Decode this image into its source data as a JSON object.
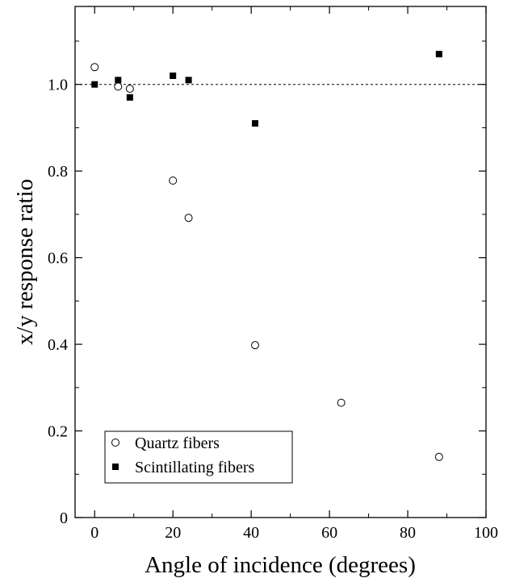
{
  "chart_data": {
    "type": "scatter",
    "xlabel": "Angle of incidence (degrees)",
    "ylabel": "x/y response ratio",
    "xlim": [
      -5,
      100
    ],
    "ylim": [
      0,
      1.18
    ],
    "xticks": [
      0,
      20,
      40,
      60,
      80,
      100
    ],
    "yticks": [
      0,
      0.2,
      0.4,
      0.6,
      0.8,
      1.0
    ],
    "xtick_labels": [
      "0",
      "20",
      "40",
      "60",
      "80",
      "100"
    ],
    "ytick_labels": [
      "0",
      "0.2",
      "0.4",
      "0.6",
      "0.8",
      "1.0"
    ],
    "reference_line": {
      "y": 1.0,
      "style": "dashed"
    },
    "grid": false,
    "legend_position": "bottom-left",
    "series": [
      {
        "name": "Quartz fibers",
        "marker": "open-circle",
        "color": "#000000",
        "points": [
          {
            "x": 0,
            "y": 1.04
          },
          {
            "x": 6,
            "y": 0.995
          },
          {
            "x": 9,
            "y": 0.99
          },
          {
            "x": 20,
            "y": 0.778
          },
          {
            "x": 24,
            "y": 0.692
          },
          {
            "x": 41,
            "y": 0.398
          },
          {
            "x": 63,
            "y": 0.265
          },
          {
            "x": 88,
            "y": 0.14
          }
        ]
      },
      {
        "name": "Scintillating fibers",
        "marker": "filled-square",
        "color": "#000000",
        "points": [
          {
            "x": 0,
            "y": 1.0
          },
          {
            "x": 6,
            "y": 1.01
          },
          {
            "x": 9,
            "y": 0.97
          },
          {
            "x": 20,
            "y": 1.02
          },
          {
            "x": 24,
            "y": 1.01
          },
          {
            "x": 41,
            "y": 0.91
          },
          {
            "x": 88,
            "y": 1.07
          }
        ]
      }
    ]
  }
}
